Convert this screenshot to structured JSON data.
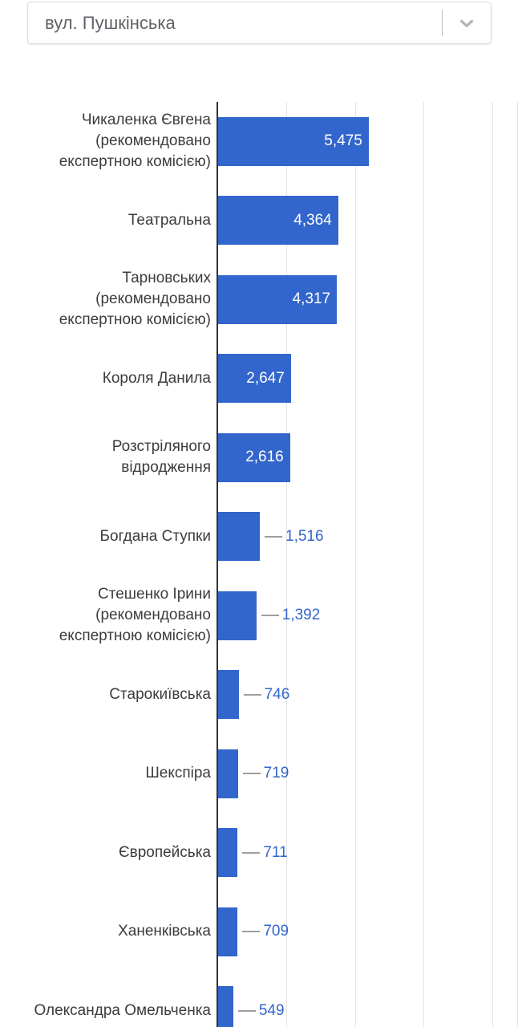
{
  "dropdown": {
    "value": "вул. Пушкінська"
  },
  "chart_data": {
    "type": "bar",
    "orientation": "horizontal",
    "title": "",
    "xlabel": "",
    "ylabel": "",
    "legend": "none",
    "grid": true,
    "xlim": [
      0,
      10900
    ],
    "x_gridlines": [
      2500,
      5000,
      7500,
      10000
    ],
    "categories": [
      "Чикаленка Євгена (рекомендовано експертною комісією)",
      "Театральна",
      "Тарновських (рекомендовано експертною комісією)",
      "Короля Данила",
      "Розстріляного відродження",
      "Богдана Ступки",
      "Стешенко Ірини (рекомендовано експертною комісією)",
      "Старокиївська",
      "Шекспіра",
      "Європейська",
      "Ханенківська",
      "Олександра Омельченка"
    ],
    "values": [
      5475,
      4364,
      4317,
      2647,
      2616,
      1516,
      1392,
      746,
      719,
      711,
      709,
      549
    ],
    "value_labels": [
      "5,475",
      "4,364",
      "4,317",
      "2,647",
      "2,616",
      "1,516",
      "1,392",
      "746",
      "719",
      "711",
      "709",
      "549"
    ],
    "colors": {
      "bar": "#3366cc",
      "annotation_inside": "#ffffff",
      "annotation_outside": "#3366cc",
      "annotation_stem": "#9e9e9e",
      "axis_line": "#333333",
      "gridline": "#e3e3e3",
      "category_label": "#3c3c3c"
    }
  }
}
